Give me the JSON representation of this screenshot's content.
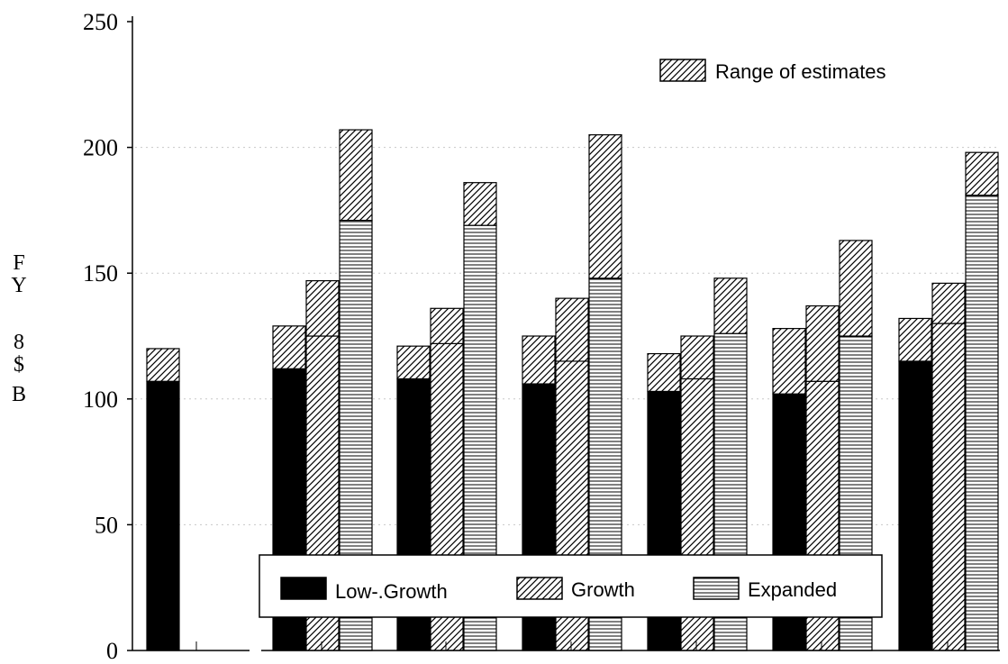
{
  "chart_data": {
    "type": "bar",
    "stacked_range": true,
    "ylabel_chars": [
      "F",
      "Y",
      "8",
      "$",
      "B"
    ],
    "ylim": [
      0,
      250
    ],
    "yticks": [
      "0",
      "50",
      "100",
      "150",
      "200",
      "250"
    ],
    "grid": "horizontal dotted",
    "colors": {
      "Low-.Growth": "#000000",
      "Growth": "#ffffff",
      "Expanded": "#ffffff",
      "range": "#ffffff"
    },
    "range_legend_label": "Range of estimates",
    "legend_labels": [
      "Low-.Growth",
      "Growth",
      "Expanded"
    ],
    "groups": [
      {
        "bars": [
          {
            "series": "Low-.Growth",
            "base": 107,
            "top": 120
          }
        ]
      },
      {
        "bars": [
          {
            "series": "Low-.Growth",
            "base": 112,
            "top": 129
          },
          {
            "series": "Growth",
            "base": 125,
            "top": 147
          },
          {
            "series": "Expanded",
            "base": 171,
            "top": 207
          }
        ]
      },
      {
        "bars": [
          {
            "series": "Low-.Growth",
            "base": 108,
            "top": 121
          },
          {
            "series": "Growth",
            "base": 122,
            "top": 136
          },
          {
            "series": "Expanded",
            "base": 169,
            "top": 186
          }
        ]
      },
      {
        "bars": [
          {
            "series": "Low-.Growth",
            "base": 106,
            "top": 125
          },
          {
            "series": "Growth",
            "base": 115,
            "top": 140
          },
          {
            "series": "Expanded",
            "base": 148,
            "top": 205
          }
        ]
      },
      {
        "bars": [
          {
            "series": "Low-.Growth",
            "base": 103,
            "top": 118
          },
          {
            "series": "Growth",
            "base": 108,
            "top": 125
          },
          {
            "series": "Expanded",
            "base": 126,
            "top": 148
          }
        ]
      },
      {
        "bars": [
          {
            "series": "Low-.Growth",
            "base": 102,
            "top": 128
          },
          {
            "series": "Growth",
            "base": 107,
            "top": 137
          },
          {
            "series": "Expanded",
            "base": 125,
            "top": 163
          }
        ]
      },
      {
        "bars": [
          {
            "series": "Low-.Growth",
            "base": 115,
            "top": 132
          },
          {
            "series": "Growth",
            "base": 130,
            "top": 146
          },
          {
            "series": "Expanded",
            "base": 181,
            "top": 198
          }
        ]
      }
    ]
  }
}
